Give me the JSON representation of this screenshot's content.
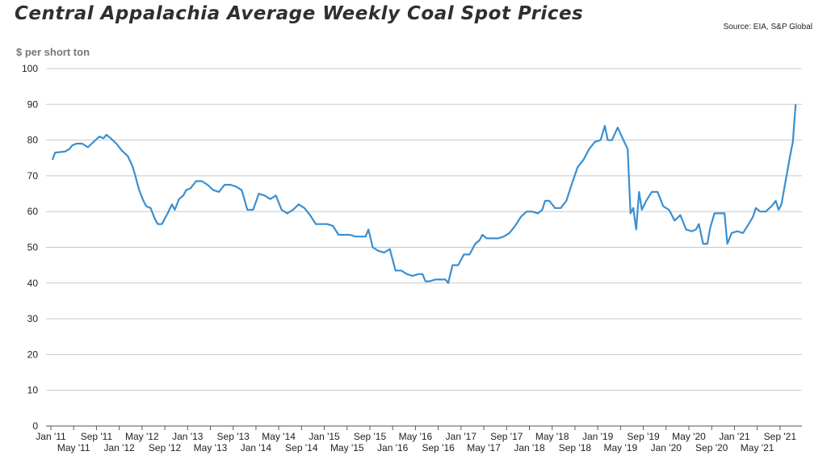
{
  "header": {
    "title": "Central Appalachia Average Weekly Coal Spot Prices",
    "source": "Source: EIA, S&P Global",
    "unit_label": "$ per short ton"
  },
  "colors": {
    "line": "#3a8fd0",
    "grid": "#c8c8c8",
    "axis": "#555555"
  },
  "chart_data": {
    "type": "line",
    "title": "Central Appalachia Average Weekly Coal Spot Prices",
    "ylabel": "$ per short ton",
    "xlabel": "",
    "ylim": [
      0,
      100
    ],
    "yticks": [
      0,
      10,
      20,
      30,
      40,
      50,
      60,
      70,
      80,
      90,
      100
    ],
    "grid": true,
    "legend": "none",
    "xticks_upper": [
      "Jan '11",
      "Sep '11",
      "May '12",
      "Jan '13",
      "Sep '13",
      "May '14",
      "Jan '15",
      "Sep '15",
      "May '16",
      "Jan '17",
      "Sep '17",
      "May '18",
      "Jan '19",
      "Sep '19",
      "May '20",
      "Jan '21",
      "Sep '21"
    ],
    "xticks_lower": [
      "May '11",
      "Jan '12",
      "Sep '12",
      "May '13",
      "Jan '14",
      "Sep '14",
      "May '15",
      "Jan '16",
      "Sep '16",
      "May '17",
      "Jan '18",
      "Sep '18",
      "May '19",
      "Jan '20",
      "Sep '20",
      "May '21"
    ],
    "xlim": [
      "2011-01",
      "2021-12"
    ],
    "series": [
      {
        "values": [
          [
            "2011-01",
            74.5
          ],
          [
            "2011-01",
            76.5
          ],
          [
            "2011-03",
            76.8
          ],
          [
            "2011-04",
            77.5
          ],
          [
            "2011-04",
            78.5
          ],
          [
            "2011-05",
            79
          ],
          [
            "2011-06",
            79
          ],
          [
            "2011-07",
            78
          ],
          [
            "2011-08",
            79.5
          ],
          [
            "2011-09",
            81
          ],
          [
            "2011-10",
            80.5
          ],
          [
            "2011-10",
            81.5
          ],
          [
            "2011-11",
            80.5
          ],
          [
            "2011-12",
            79
          ],
          [
            "2012-01",
            77
          ],
          [
            "2012-02",
            75.5
          ],
          [
            "2012-03",
            73
          ],
          [
            "2012-03",
            70.5
          ],
          [
            "2012-04",
            66
          ],
          [
            "2012-05",
            63
          ],
          [
            "2012-05",
            61.5
          ],
          [
            "2012-06",
            61
          ],
          [
            "2012-07",
            58
          ],
          [
            "2012-07",
            56.5
          ],
          [
            "2012-08",
            56.5
          ],
          [
            "2012-09",
            59.5
          ],
          [
            "2012-10",
            62
          ],
          [
            "2012-10",
            60.5
          ],
          [
            "2012-11",
            63.5
          ],
          [
            "2012-12",
            64.5
          ],
          [
            "2012-12",
            66
          ],
          [
            "2013-01",
            66.5
          ],
          [
            "2013-02",
            68.5
          ],
          [
            "2013-03",
            68.5
          ],
          [
            "2013-04",
            67.5
          ],
          [
            "2013-05",
            66
          ],
          [
            "2013-06",
            65.5
          ],
          [
            "2013-07",
            67.5
          ],
          [
            "2013-08",
            67.5
          ],
          [
            "2013-09",
            67
          ],
          [
            "2013-10",
            66
          ],
          [
            "2013-11",
            60.5
          ],
          [
            "2013-12",
            60.5
          ],
          [
            "2014-01",
            65
          ],
          [
            "2014-02",
            64.5
          ],
          [
            "2014-03",
            63.5
          ],
          [
            "2014-04",
            64.5
          ],
          [
            "2014-05",
            60.5
          ],
          [
            "2014-06",
            59.5
          ],
          [
            "2014-07",
            60.5
          ],
          [
            "2014-08",
            62
          ],
          [
            "2014-09",
            61
          ],
          [
            "2014-10",
            59
          ],
          [
            "2014-11",
            56.5
          ],
          [
            "2014-12",
            56.5
          ],
          [
            "2015-01",
            56.5
          ],
          [
            "2015-02",
            56
          ],
          [
            "2015-03",
            53.5
          ],
          [
            "2015-04",
            53.5
          ],
          [
            "2015-05",
            53.5
          ],
          [
            "2015-06",
            53
          ],
          [
            "2015-07",
            53
          ],
          [
            "2015-08",
            53
          ],
          [
            "2015-08",
            55
          ],
          [
            "2015-09",
            50
          ],
          [
            "2015-10",
            49
          ],
          [
            "2015-11",
            48.5
          ],
          [
            "2015-12",
            49.5
          ],
          [
            "2016-01",
            43.5
          ],
          [
            "2016-02",
            43.5
          ],
          [
            "2016-03",
            42.5
          ],
          [
            "2016-04",
            42
          ],
          [
            "2016-05",
            42.5
          ],
          [
            "2016-06",
            42.5
          ],
          [
            "2016-06",
            40.5
          ],
          [
            "2016-07",
            40.5
          ],
          [
            "2016-08",
            41
          ],
          [
            "2016-09",
            41
          ],
          [
            "2016-10",
            41
          ],
          [
            "2016-10",
            40
          ],
          [
            "2016-11",
            45
          ],
          [
            "2016-12",
            45
          ],
          [
            "2017-01",
            48
          ],
          [
            "2017-02",
            48
          ],
          [
            "2017-03",
            51
          ],
          [
            "2017-04",
            52
          ],
          [
            "2017-04",
            53.5
          ],
          [
            "2017-05",
            52.5
          ],
          [
            "2017-06",
            52.5
          ],
          [
            "2017-07",
            52.5
          ],
          [
            "2017-08",
            53
          ],
          [
            "2017-09",
            54
          ],
          [
            "2017-10",
            56
          ],
          [
            "2017-11",
            58.5
          ],
          [
            "2017-12",
            60
          ],
          [
            "2018-01",
            60
          ],
          [
            "2018-02",
            59.5
          ],
          [
            "2018-03",
            60.5
          ],
          [
            "2018-03",
            63
          ],
          [
            "2018-04",
            63
          ],
          [
            "2018-05",
            61
          ],
          [
            "2018-06",
            61
          ],
          [
            "2018-07",
            63
          ],
          [
            "2018-08",
            68
          ],
          [
            "2018-09",
            72.5
          ],
          [
            "2018-10",
            74.5
          ],
          [
            "2018-11",
            77.5
          ],
          [
            "2018-12",
            79.5
          ],
          [
            "2019-01",
            80
          ],
          [
            "2019-02",
            84
          ],
          [
            "2019-02",
            80
          ],
          [
            "2019-03",
            80
          ],
          [
            "2019-04",
            83.5
          ],
          [
            "2019-05",
            80
          ],
          [
            "2019-06",
            77.5
          ],
          [
            "2019-06",
            59.5
          ],
          [
            "2019-07",
            61
          ],
          [
            "2019-07",
            55
          ],
          [
            "2019-08",
            65.5
          ],
          [
            "2019-08",
            60.5
          ],
          [
            "2019-09",
            63
          ],
          [
            "2019-10",
            65.5
          ],
          [
            "2019-11",
            65.5
          ],
          [
            "2019-12",
            61.5
          ],
          [
            "2020-01",
            60.5
          ],
          [
            "2020-02",
            57.5
          ],
          [
            "2020-03",
            59
          ],
          [
            "2020-04",
            55
          ],
          [
            "2020-05",
            54.5
          ],
          [
            "2020-06",
            55
          ],
          [
            "2020-06",
            56.5
          ],
          [
            "2020-07",
            51
          ],
          [
            "2020-08",
            51
          ],
          [
            "2020-08",
            55.5
          ],
          [
            "2020-09",
            59.5
          ],
          [
            "2020-10",
            59.5
          ],
          [
            "2020-11",
            59.5
          ],
          [
            "2020-11",
            51
          ],
          [
            "2020-12",
            54
          ],
          [
            "2021-01",
            54.5
          ],
          [
            "2021-02",
            54
          ],
          [
            "2021-03",
            56.5
          ],
          [
            "2021-04",
            58.5
          ],
          [
            "2021-04",
            61
          ],
          [
            "2021-05",
            60
          ],
          [
            "2021-06",
            60
          ],
          [
            "2021-07",
            61.5
          ],
          [
            "2021-08",
            63
          ],
          [
            "2021-08",
            60.5
          ],
          [
            "2021-09",
            62
          ],
          [
            "2021-09",
            66.5
          ],
          [
            "2021-10",
            71
          ],
          [
            "2021-10",
            75.5
          ],
          [
            "2021-11",
            79.5
          ],
          [
            "2021-11",
            90
          ]
        ]
      }
    ]
  }
}
